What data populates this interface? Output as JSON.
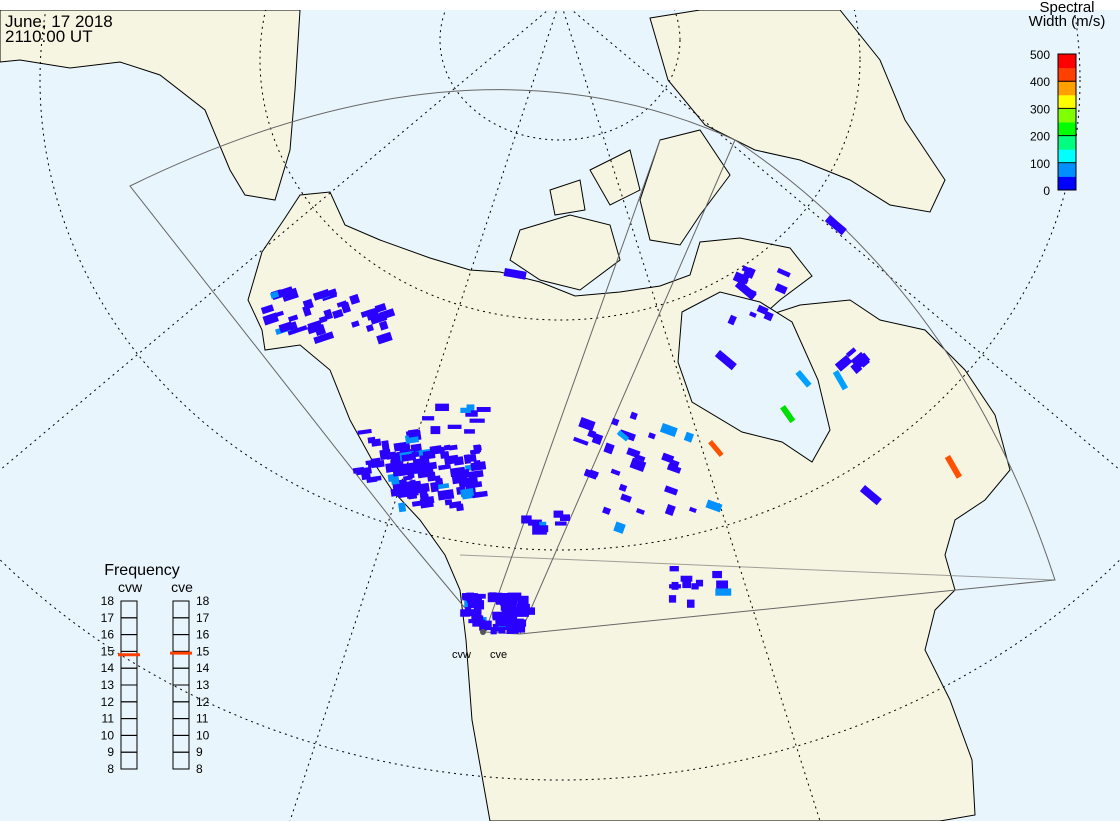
{
  "header": {
    "date": "June, 17 2018",
    "time": "2110:00 UT"
  },
  "colorbar": {
    "title_line1": "Spectral",
    "title_line2": "Width (m/s)",
    "ticks": [
      "500",
      "400",
      "300",
      "200",
      "100",
      "0"
    ],
    "range": [
      0,
      500
    ],
    "colors": [
      "#0000ff",
      "#0090ff",
      "#00ffff",
      "#00ff80",
      "#00ff00",
      "#80ff00",
      "#ffff00",
      "#ffa000",
      "#ff4000",
      "#ff0000"
    ]
  },
  "frequency": {
    "title": "Frequency",
    "radars": [
      {
        "name": "cvw",
        "value_mhz": 14.8
      },
      {
        "name": "cve",
        "value_mhz": 14.9
      }
    ],
    "ticks": [
      "18",
      "17",
      "16",
      "15",
      "14",
      "13",
      "12",
      "11",
      "10",
      "9",
      "8"
    ],
    "range": [
      8,
      18
    ],
    "marker_color": "#ff4000"
  },
  "map": {
    "ocean_color": "#e8f5fc",
    "land_color": "#f6f5e1",
    "radar_labels": [
      "cvw",
      "cve"
    ]
  }
}
